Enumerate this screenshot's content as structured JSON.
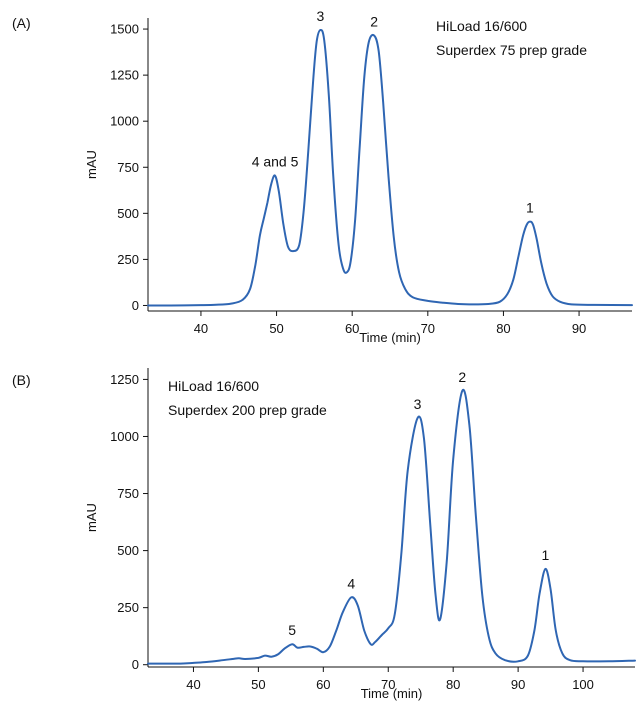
{
  "colors": {
    "series": "#2f66b3",
    "axis": "#111111"
  },
  "chart_data": [
    {
      "type": "line",
      "panel_label": "(A)",
      "xlabel": "Time (min)",
      "ylabel": "mAU",
      "xlim": [
        33,
        97
      ],
      "ylim": [
        -30,
        1560
      ],
      "x_ticks": [
        40,
        50,
        60,
        70,
        80,
        90
      ],
      "y_ticks": [
        0,
        250,
        500,
        750,
        1000,
        1250,
        1500
      ],
      "annotations": [
        "HiLoad 16/600",
        "Superdex 75 prep grade"
      ],
      "peak_labels": [
        {
          "text": "4 and 5",
          "x": 49.8,
          "y": 705
        },
        {
          "text": "3",
          "x": 55.8,
          "y": 1495
        },
        {
          "text": "2",
          "x": 62.9,
          "y": 1465
        },
        {
          "text": "1",
          "x": 83.5,
          "y": 455
        }
      ],
      "series": [
        {
          "x": [
            33,
            36,
            40,
            42,
            44,
            45.5,
            46.5,
            47.2,
            47.8,
            48.3,
            48.8,
            49.3,
            49.8,
            50.3,
            50.9,
            51.5,
            52.2,
            53,
            53.6,
            54.2,
            54.8,
            55.3,
            55.8,
            56.3,
            56.9,
            57.5,
            58.2,
            58.8,
            59.3,
            59.8,
            60.4,
            61,
            61.6,
            62.2,
            62.9,
            63.5,
            64.1,
            64.8,
            65.5,
            66.2,
            67,
            68,
            70,
            72,
            74,
            76,
            78,
            79.5,
            80.5,
            81.3,
            82,
            82.6,
            83.1,
            83.5,
            83.9,
            84.4,
            85,
            85.7,
            86.5,
            87.5,
            89,
            92,
            97
          ],
          "y": [
            0,
            0,
            2,
            4,
            10,
            30,
            90,
            220,
            380,
            470,
            560,
            660,
            705,
            620,
            440,
            320,
            295,
            330,
            520,
            840,
            1200,
            1430,
            1495,
            1440,
            1150,
            700,
            330,
            200,
            180,
            240,
            470,
            870,
            1240,
            1430,
            1465,
            1380,
            1100,
            700,
            370,
            180,
            90,
            45,
            25,
            15,
            8,
            6,
            8,
            20,
            60,
            140,
            270,
            380,
            440,
            455,
            440,
            360,
            230,
            120,
            50,
            20,
            6,
            3,
            2
          ]
        }
      ]
    },
    {
      "type": "line",
      "panel_label": "(B)",
      "xlabel": "Time (min)",
      "ylabel": "mAU",
      "xlim": [
        33,
        108
      ],
      "ylim": [
        -10,
        1300
      ],
      "x_ticks": [
        40,
        50,
        60,
        70,
        80,
        90,
        100
      ],
      "y_ticks": [
        0,
        250,
        500,
        750,
        1000,
        1250
      ],
      "annotations": [
        "HiLoad 16/600",
        "Superdex 200 prep grade"
      ],
      "peak_labels": [
        {
          "text": "5",
          "x": 55.2,
          "y": 90
        },
        {
          "text": "4",
          "x": 64.3,
          "y": 295
        },
        {
          "text": "3",
          "x": 74.5,
          "y": 1080
        },
        {
          "text": "2",
          "x": 81.4,
          "y": 1200
        },
        {
          "text": "1",
          "x": 94.2,
          "y": 420
        }
      ],
      "series": [
        {
          "x": [
            33,
            38,
            40,
            42,
            44,
            46,
            47,
            48,
            50,
            51,
            52,
            53,
            54,
            55.2,
            56,
            57,
            58,
            59,
            60,
            61,
            62,
            63,
            64.3,
            65.3,
            66.3,
            67.3,
            68,
            69,
            70,
            71,
            72,
            73,
            74.5,
            75.5,
            76.5,
            77.3,
            78,
            79,
            80,
            81.4,
            82.5,
            83.5,
            84.5,
            85.5,
            86.5,
            88,
            90,
            91.5,
            92.5,
            93.3,
            94.2,
            95,
            95.8,
            96.8,
            98,
            100,
            104,
            108
          ],
          "y": [
            5,
            5,
            8,
            12,
            18,
            25,
            28,
            25,
            30,
            40,
            35,
            45,
            70,
            90,
            75,
            78,
            80,
            70,
            55,
            80,
            150,
            230,
            295,
            260,
            150,
            90,
            100,
            130,
            160,
            220,
            480,
            850,
            1080,
            990,
            600,
            300,
            200,
            450,
            900,
            1200,
            1050,
            650,
            300,
            120,
            50,
            20,
            15,
            40,
            150,
            310,
            420,
            330,
            150,
            50,
            20,
            15,
            15,
            18
          ]
        }
      ]
    }
  ]
}
